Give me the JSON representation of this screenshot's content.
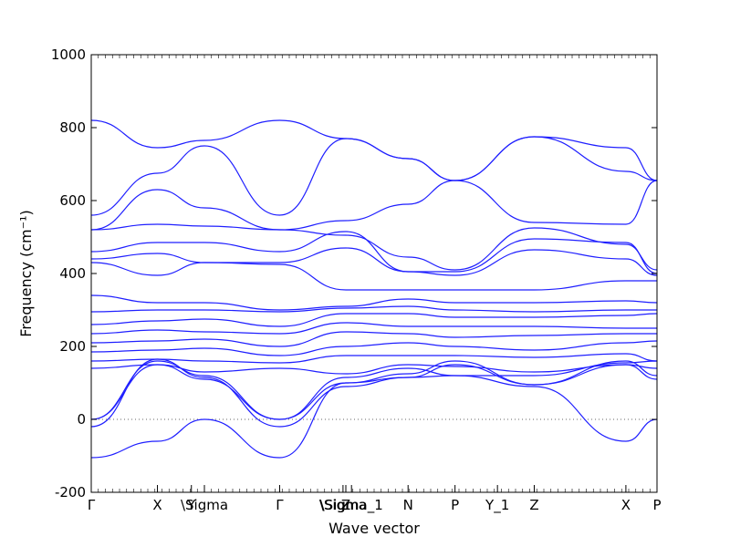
{
  "chart_data": {
    "type": "line",
    "xlabel": "Wave vector",
    "ylabel": "Frequency (cm⁻¹)",
    "ylim": [
      -200,
      1000
    ],
    "yticks": [
      -200,
      0,
      200,
      400,
      600,
      800,
      1000
    ],
    "xlim": [
      0,
      1
    ],
    "band_color": "#0000ff",
    "zero_line": true,
    "grid": false,
    "high_symmetry_points": [
      {
        "x": 0.0,
        "label": "Γ"
      },
      {
        "x": 0.117,
        "label": "X"
      },
      {
        "x": 0.177,
        "label": "Y"
      },
      {
        "x": 0.2,
        "label": "\\Sigma"
      },
      {
        "x": 0.333,
        "label": "Γ"
      },
      {
        "x": 0.445,
        "label": "\\Sigma"
      },
      {
        "x": 0.45,
        "label": "Z"
      },
      {
        "x": 0.46,
        "label": "\\Sigma_1"
      },
      {
        "x": 0.56,
        "label": "N"
      },
      {
        "x": 0.643,
        "label": "P"
      },
      {
        "x": 0.718,
        "label": "Y_1"
      },
      {
        "x": 0.783,
        "label": "Z"
      },
      {
        "x": 0.945,
        "label": "X"
      },
      {
        "x": 1.0,
        "label": "P"
      }
    ],
    "series": [
      {
        "x": [
          0,
          0.117,
          0.2,
          0.333,
          0.45,
          0.56,
          0.643,
          0.783,
          0.945,
          1.0
        ],
        "y": [
          820,
          745,
          765,
          820,
          770,
          715,
          655,
          775,
          745,
          655
        ]
      },
      {
        "x": [
          0,
          0.117,
          0.2,
          0.333,
          0.45,
          0.56,
          0.643,
          0.783,
          0.945,
          1.0
        ],
        "y": [
          560,
          675,
          750,
          560,
          770,
          715,
          655,
          775,
          680,
          655
        ]
      },
      {
        "x": [
          0,
          0.117,
          0.2,
          0.333,
          0.45,
          0.56,
          0.643,
          0.783,
          0.945,
          1.0
        ],
        "y": [
          520,
          630,
          580,
          520,
          545,
          590,
          655,
          540,
          535,
          655
        ]
      },
      {
        "x": [
          0,
          0.117,
          0.2,
          0.333,
          0.45,
          0.56,
          0.643,
          0.783,
          0.945,
          1.0
        ],
        "y": [
          520,
          535,
          530,
          520,
          505,
          445,
          410,
          525,
          480,
          410
        ]
      },
      {
        "x": [
          0,
          0.117,
          0.2,
          0.333,
          0.45,
          0.56,
          0.643,
          0.783,
          0.945,
          1.0
        ],
        "y": [
          460,
          485,
          485,
          460,
          515,
          405,
          405,
          495,
          485,
          400
        ]
      },
      {
        "x": [
          0,
          0.117,
          0.2,
          0.333,
          0.45,
          0.56,
          0.643,
          0.783,
          0.945,
          1.0
        ],
        "y": [
          440,
          455,
          430,
          430,
          470,
          405,
          395,
          465,
          440,
          395
        ]
      },
      {
        "x": [
          0,
          0.117,
          0.2,
          0.333,
          0.45,
          0.56,
          0.643,
          0.783,
          0.945,
          1.0
        ],
        "y": [
          430,
          395,
          430,
          425,
          355,
          355,
          355,
          355,
          380,
          380
        ]
      },
      {
        "x": [
          0,
          0.117,
          0.2,
          0.333,
          0.45,
          0.56,
          0.643,
          0.783,
          0.945,
          1.0
        ],
        "y": [
          340,
          320,
          320,
          300,
          310,
          330,
          320,
          320,
          325,
          320
        ]
      },
      {
        "x": [
          0,
          0.117,
          0.2,
          0.333,
          0.45,
          0.56,
          0.643,
          0.783,
          0.945,
          1.0
        ],
        "y": [
          295,
          300,
          300,
          295,
          305,
          310,
          300,
          295,
          300,
          300
        ]
      },
      {
        "x": [
          0,
          0.117,
          0.2,
          0.333,
          0.45,
          0.56,
          0.643,
          0.783,
          0.945,
          1.0
        ],
        "y": [
          260,
          270,
          275,
          255,
          290,
          290,
          280,
          280,
          285,
          290
        ]
      },
      {
        "x": [
          0,
          0.117,
          0.2,
          0.333,
          0.45,
          0.56,
          0.643,
          0.783,
          0.945,
          1.0
        ],
        "y": [
          235,
          245,
          240,
          235,
          265,
          255,
          255,
          255,
          250,
          250
        ]
      },
      {
        "x": [
          0,
          0.117,
          0.2,
          0.333,
          0.45,
          0.56,
          0.643,
          0.783,
          0.945,
          1.0
        ],
        "y": [
          210,
          215,
          220,
          200,
          240,
          235,
          225,
          230,
          235,
          235
        ]
      },
      {
        "x": [
          0,
          0.117,
          0.2,
          0.333,
          0.45,
          0.56,
          0.643,
          0.783,
          0.945,
          1.0
        ],
        "y": [
          185,
          190,
          195,
          175,
          200,
          210,
          200,
          190,
          210,
          215
        ]
      },
      {
        "x": [
          0,
          0.117,
          0.2,
          0.333,
          0.45,
          0.56,
          0.643,
          0.783,
          0.945,
          1.0
        ],
        "y": [
          160,
          165,
          160,
          155,
          175,
          175,
          175,
          170,
          180,
          160
        ]
      },
      {
        "x": [
          0,
          0.117,
          0.2,
          0.333,
          0.45,
          0.56,
          0.643,
          0.783,
          0.945,
          1.0
        ],
        "y": [
          140,
          150,
          130,
          140,
          125,
          150,
          145,
          130,
          150,
          140
        ]
      },
      {
        "x": [
          0,
          0.117,
          0.2,
          0.333,
          0.45,
          0.56,
          0.643,
          0.783,
          0.945,
          1.0
        ],
        "y": [
          0,
          160,
          120,
          0,
          115,
          140,
          120,
          120,
          155,
          160
        ]
      },
      {
        "x": [
          0,
          0.117,
          0.2,
          0.333,
          0.45,
          0.56,
          0.643,
          0.783,
          0.945,
          1.0
        ],
        "y": [
          0,
          150,
          110,
          0,
          100,
          125,
          160,
          95,
          160,
          120
        ]
      },
      {
        "x": [
          0,
          0.117,
          0.2,
          0.333,
          0.45,
          0.56,
          0.643,
          0.783,
          0.945,
          1.0
        ],
        "y": [
          -20,
          165,
          115,
          -20,
          90,
          115,
          150,
          95,
          150,
          110
        ]
      },
      {
        "x": [
          0,
          0.117,
          0.2,
          0.333,
          0.45,
          0.56,
          0.643,
          0.783,
          0.945,
          1.0
        ],
        "y": [
          -105,
          -60,
          0,
          -105,
          100,
          115,
          120,
          90,
          -60,
          0
        ]
      }
    ]
  }
}
